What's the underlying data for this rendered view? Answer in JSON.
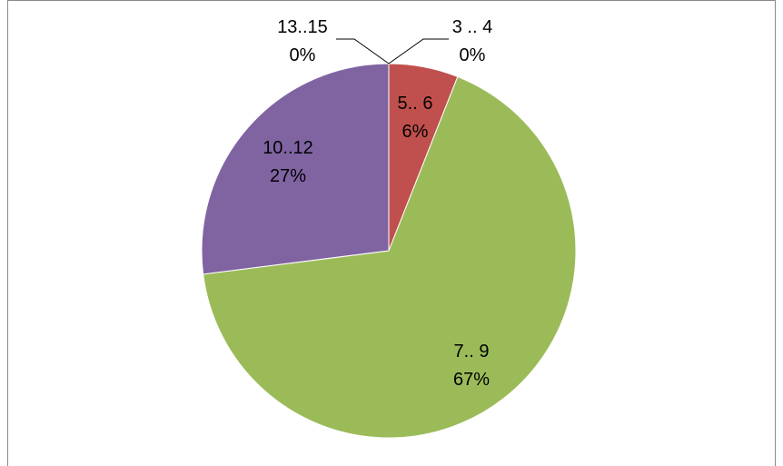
{
  "chart_data": {
    "type": "pie",
    "title": "",
    "start_angle_deg": 0,
    "direction": "clockwise",
    "legend": "none",
    "slices": [
      {
        "category": "3 .. 4",
        "value": 0,
        "percent_label": "0%",
        "color": "#4F81BD"
      },
      {
        "category": "5.. 6",
        "value": 6,
        "percent_label": "6%",
        "color": "#C0504D"
      },
      {
        "category": "7.. 9",
        "value": 67,
        "percent_label": "67%",
        "color": "#9BBB59"
      },
      {
        "category": "10..12",
        "value": 27,
        "percent_label": "27%",
        "color": "#8064A2"
      },
      {
        "category": "13..15",
        "value": 0,
        "percent_label": "0%",
        "color": "#4BACC6"
      }
    ]
  }
}
